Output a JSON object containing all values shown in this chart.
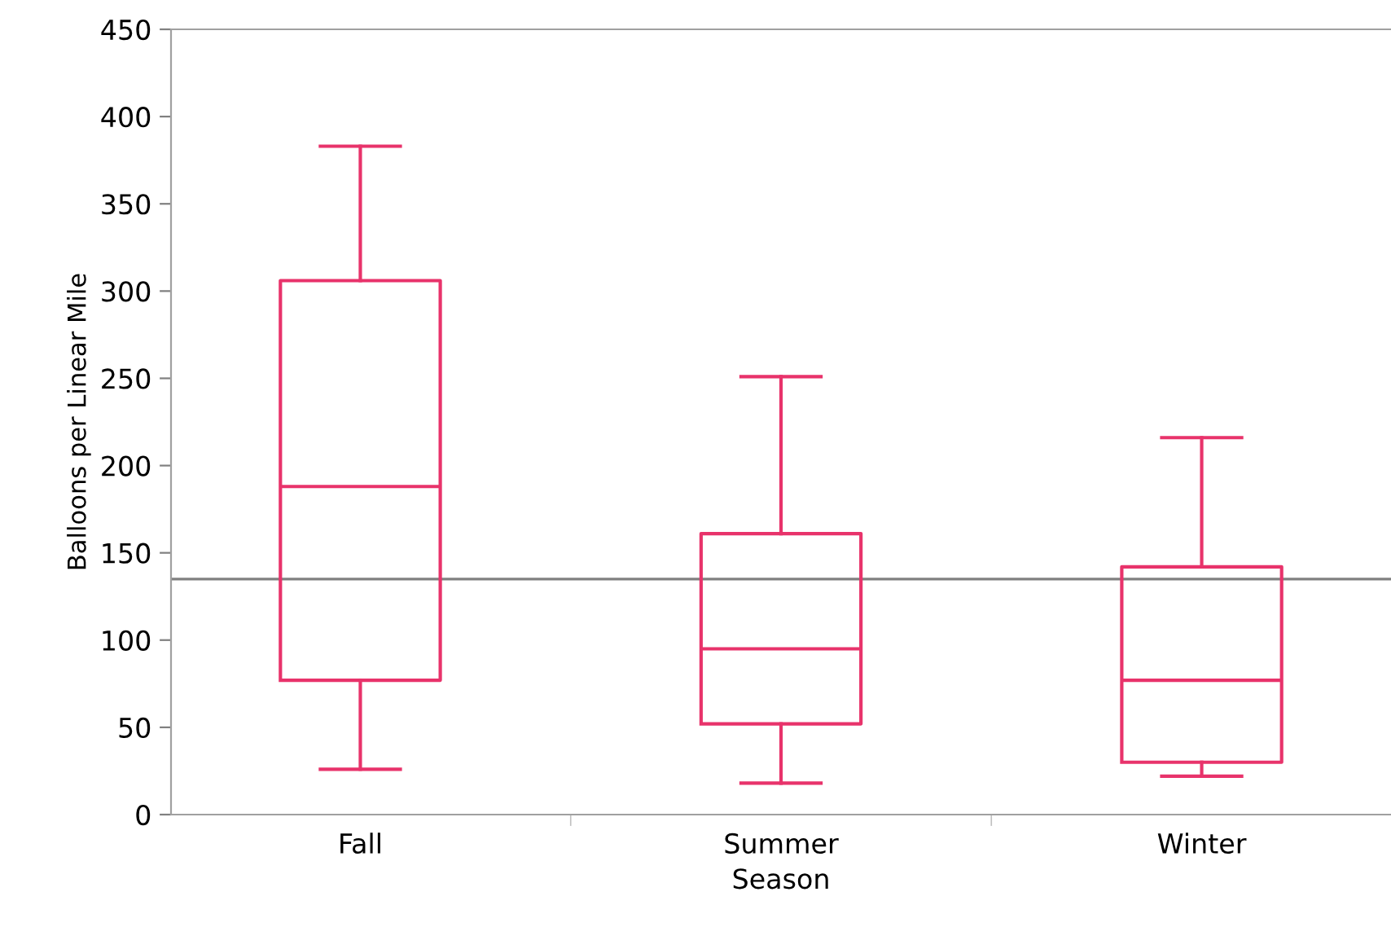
{
  "chart_data": {
    "type": "box",
    "xlabel": "Season",
    "ylabel": "Balloons per Linear Mile",
    "categories": [
      "Fall",
      "Summer",
      "Winter"
    ],
    "boxes": [
      {
        "low": 26,
        "q1": 77,
        "median": 188,
        "q3": 306,
        "high": 383
      },
      {
        "low": 18,
        "q1": 52,
        "median": 95,
        "q3": 161,
        "high": 251
      },
      {
        "low": 22,
        "q1": 30,
        "median": 77,
        "q3": 142,
        "high": 216
      }
    ],
    "color": "#e8336b",
    "ylim": [
      0,
      450
    ],
    "yticks": [
      0,
      50,
      100,
      150,
      200,
      250,
      300,
      350,
      400,
      450
    ],
    "ref_lines": [
      {
        "axis": "y",
        "value": 135,
        "color": "#808080"
      }
    ],
    "grid": false,
    "legend": false
  }
}
